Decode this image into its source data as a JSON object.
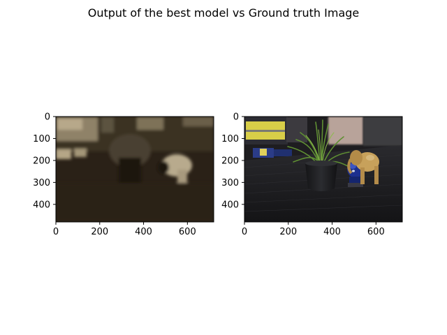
{
  "figure": {
    "title": "Output of the best model vs Ground truth Image"
  },
  "panels": [
    {
      "name": "model-output",
      "x_ticks": [
        "0",
        "200",
        "400",
        "600"
      ],
      "y_ticks": [
        "0",
        "100",
        "200",
        "300",
        "400"
      ],
      "x_tick_values": [
        0,
        200,
        400,
        600
      ],
      "y_tick_values": [
        0,
        100,
        200,
        300,
        400
      ],
      "image_width": 720,
      "image_height": 480,
      "tone": "dark sepia, low detail, blurred"
    },
    {
      "name": "ground-truth",
      "x_ticks": [
        "0",
        "200",
        "400",
        "600"
      ],
      "y_ticks": [
        "0",
        "100",
        "200",
        "300",
        "400"
      ],
      "x_tick_values": [
        0,
        200,
        400,
        600
      ],
      "y_tick_values": [
        0,
        100,
        200,
        300,
        400
      ],
      "image_width": 720,
      "image_height": 480,
      "tone": "full color photo: potted grass plant, blue toy, tan elephant figurine on dark table"
    }
  ],
  "colors": {
    "background": "#ffffff",
    "axis": "#000000",
    "output_base": "#2a2117",
    "output_light": "#b7a88a",
    "gt_table": "#1f1f22",
    "gt_plant": "#4f7a2d",
    "gt_blue_toy": "#1d2f8e",
    "gt_elephant": "#c7a15b",
    "gt_screen": "#e6dc4d"
  }
}
